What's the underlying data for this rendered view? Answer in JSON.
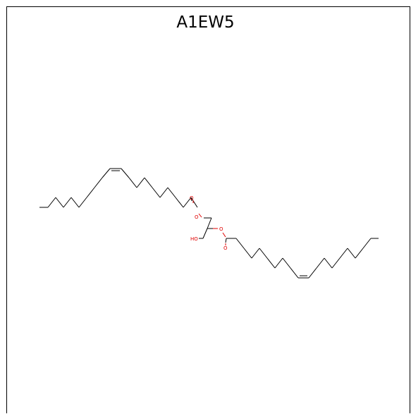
{
  "title": "A1EW5",
  "atom_labels": {
    "carbonyl_o_1": "O",
    "ester_o_1": "O",
    "ester_o_2": "O",
    "carbonyl_o_2": "O",
    "hydroxyl": "HO"
  },
  "colors": {
    "bond": "#000000",
    "heteroatom": "#e00000",
    "background": "#ffffff",
    "frame": "#000000"
  }
}
